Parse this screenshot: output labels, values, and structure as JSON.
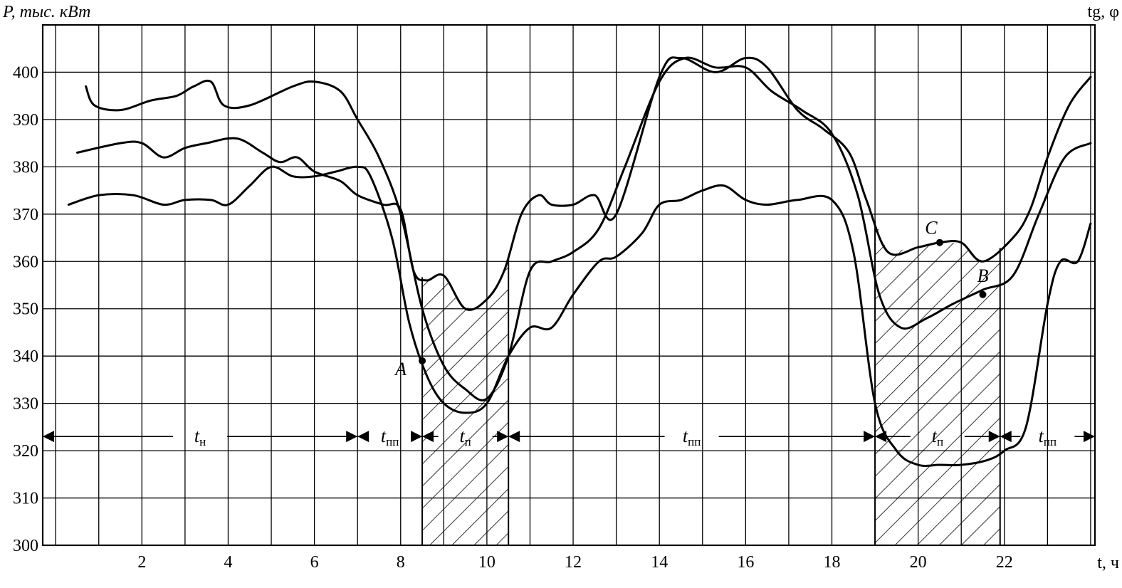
{
  "chart_data": {
    "type": "line",
    "ylabel": "P, тыс. кВт",
    "y2label": "tg, φ",
    "xlabel": "t, ч",
    "xlim": [
      -0.3,
      24.1
    ],
    "ylim": [
      300,
      410
    ],
    "grid": true,
    "x_ticks": [
      "2",
      "4",
      "6",
      "8",
      "10",
      "12",
      "14",
      "16",
      "18",
      "20",
      "22"
    ],
    "y_ticks": [
      "300",
      "310",
      "320",
      "330",
      "340",
      "350",
      "360",
      "370",
      "380",
      "390",
      "400"
    ],
    "series": [
      {
        "x": [
          0.7,
          0.9,
          1.5,
          2.2,
          2.8,
          3.2,
          3.6,
          3.9,
          4.5,
          5.5,
          6.0,
          6.6,
          7.0,
          7.5,
          8.0,
          8.5,
          9.0,
          9.5,
          10.0,
          10.5,
          11.0,
          11.5,
          12.0,
          12.6,
          13.2,
          14.0,
          14.6,
          15.3,
          16.0,
          16.6,
          17.3,
          18.0,
          18.6,
          19.1,
          19.6,
          20.2,
          20.8,
          21.5,
          22.2,
          22.8,
          23.4,
          24.0
        ],
        "y": [
          397,
          393,
          392,
          394,
          395,
          397,
          398,
          393,
          393,
          397,
          398,
          396,
          390,
          382,
          370,
          350,
          338,
          333,
          331,
          340,
          358,
          360,
          362,
          367,
          380,
          398,
          403,
          401,
          401,
          396,
          392,
          387,
          374,
          353,
          346,
          348,
          351,
          354,
          357,
          370,
          382,
          385
        ]
      },
      {
        "x": [
          0.5,
          1.5,
          2.0,
          2.5,
          3.0,
          3.5,
          4.2,
          4.8,
          5.2,
          5.6,
          6.0,
          6.6,
          7.0,
          7.6,
          8.0,
          8.3,
          8.6,
          9.0,
          9.5,
          10.0,
          10.4,
          10.8,
          11.2,
          11.5,
          12.0,
          12.5,
          13.0,
          14.0,
          14.5,
          15.3,
          16.0,
          16.5,
          17.2,
          17.8,
          18.4,
          18.8,
          19.3,
          20.0,
          20.5,
          21.0,
          21.5,
          22.2,
          22.6,
          23.0,
          23.5,
          24.0
        ],
        "y": [
          383,
          385,
          385,
          382,
          384,
          385,
          386,
          383,
          381,
          382,
          379,
          377,
          374,
          372,
          371,
          358,
          356,
          357,
          350,
          352,
          358,
          370,
          374,
          372,
          372,
          374,
          370,
          399,
          403,
          400,
          403,
          401,
          392,
          388,
          383,
          373,
          362,
          363,
          364,
          364,
          360,
          365,
          371,
          382,
          393,
          399
        ]
      },
      {
        "x": [
          0.3,
          1.0,
          1.8,
          2.5,
          3.0,
          3.6,
          4.0,
          4.5,
          5.0,
          5.5,
          6.0,
          6.5,
          7.0,
          7.3,
          7.8,
          8.2,
          8.6,
          9.0,
          9.5,
          10.0,
          10.5,
          11.0,
          11.5,
          12.0,
          12.6,
          13.0,
          13.6,
          14.0,
          14.5,
          15.0,
          15.5,
          16.0,
          16.5,
          17.2,
          18.0,
          18.5,
          19.0,
          19.5,
          20.0,
          20.5,
          21.0,
          21.6,
          22.0,
          22.5,
          23.0,
          23.3,
          23.7,
          24.0
        ],
        "y": [
          372,
          374,
          374,
          372,
          373,
          373,
          372,
          376,
          380,
          378,
          378,
          379,
          380,
          378,
          365,
          347,
          336,
          330,
          328,
          330,
          340,
          346,
          346,
          353,
          360,
          361,
          366,
          372,
          373,
          375,
          376,
          373,
          372,
          373,
          373,
          362,
          330,
          320,
          317,
          317,
          317,
          318,
          320,
          325,
          351,
          360,
          360,
          368
        ]
      }
    ],
    "points": [
      {
        "label": "A",
        "x": 8.5,
        "y": 339
      },
      {
        "label": "C",
        "x": 20.5,
        "y": 364
      },
      {
        "label": "B",
        "x": 21.5,
        "y": 353
      }
    ],
    "shaded_intervals": [
      [
        8.5,
        10.5
      ],
      [
        19.0,
        21.9
      ]
    ],
    "periods": [
      {
        "base": "t",
        "sub": "н",
        "x_from": -0.3,
        "x_to": 7.0
      },
      {
        "base": "t",
        "sub": "пп",
        "x_from": 7.0,
        "x_to": 8.5
      },
      {
        "base": "t",
        "sub": "п",
        "x_from": 8.5,
        "x_to": 10.5
      },
      {
        "base": "t",
        "sub": "пп",
        "x_from": 10.5,
        "x_to": 19.0
      },
      {
        "base": "t",
        "sub": "п",
        "x_from": 19.0,
        "x_to": 21.9
      },
      {
        "base": "t",
        "sub": "пп",
        "x_from": 21.9,
        "x_to": 24.1
      }
    ],
    "period_arrow_y": 323
  }
}
